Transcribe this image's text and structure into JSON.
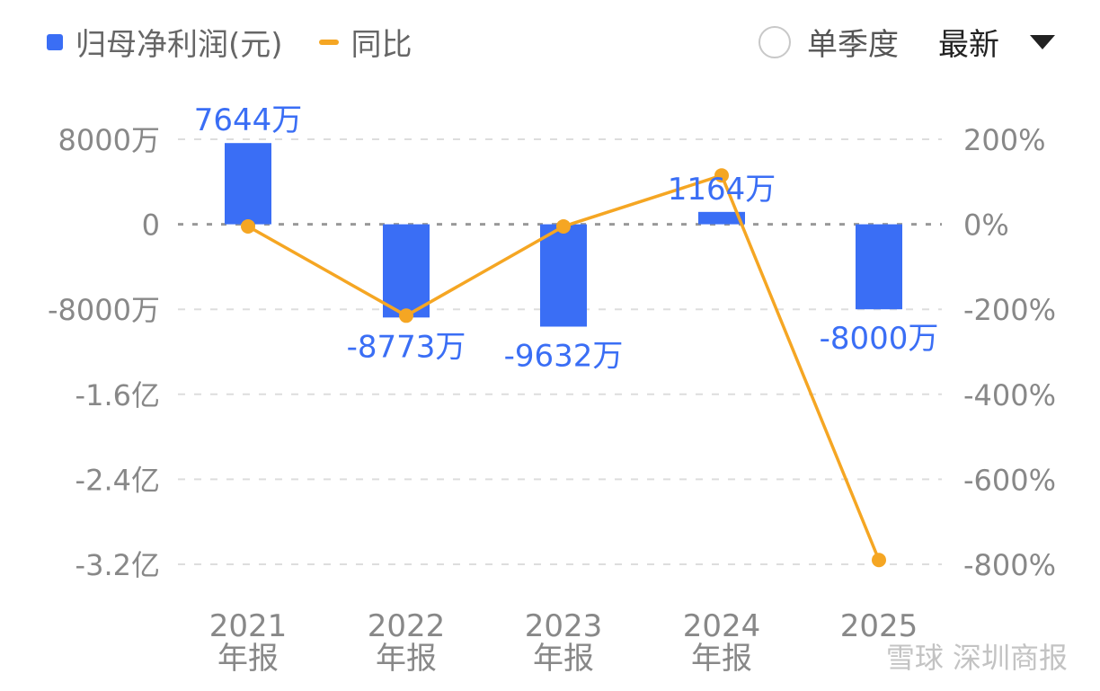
{
  "legend": {
    "series_bar": "归母净利润(元)",
    "series_line": "同比"
  },
  "controls": {
    "quarter_label": "单季度",
    "latest_label": "最新"
  },
  "watermark": "雪球 深圳商报",
  "colors": {
    "bar": "#3A6EF5",
    "line": "#F5A623",
    "label_blue": "#3A6EF5",
    "axis_text": "#888888",
    "grid": "#dddddd"
  },
  "chart_data": {
    "type": "bar",
    "categories": [
      "2021\n年报",
      "2022\n年报",
      "2023\n年报",
      "2024\n年报",
      "2025"
    ],
    "series": [
      {
        "name": "归母净利润(元)",
        "type": "bar",
        "axis": "left",
        "values": [
          76440000,
          -87730000,
          -96320000,
          11640000,
          -80000000
        ],
        "labels": [
          "7644万",
          "-8773万",
          "-9632万",
          "1164万",
          "-8000万"
        ]
      },
      {
        "name": "同比",
        "type": "line",
        "axis": "right",
        "values": [
          -5,
          -215,
          -5,
          115,
          -790
        ]
      }
    ],
    "y_left": {
      "ylim": [
        -320000000,
        80000000
      ],
      "ticks": [
        80000000,
        0,
        -80000000,
        -160000000,
        -240000000,
        -320000000
      ],
      "tick_labels": [
        "8000万",
        "0",
        "-8000万",
        "-1.6亿",
        "-2.4亿",
        "-3.2亿"
      ]
    },
    "y_right": {
      "ylim": [
        -800,
        200
      ],
      "ticks": [
        200,
        0,
        -200,
        -400,
        -600,
        -800
      ],
      "tick_labels": [
        "200%",
        "0%",
        "-200%",
        "-400%",
        "-600%",
        "-800%"
      ]
    },
    "grid": true,
    "legend_position": "top-left"
  }
}
